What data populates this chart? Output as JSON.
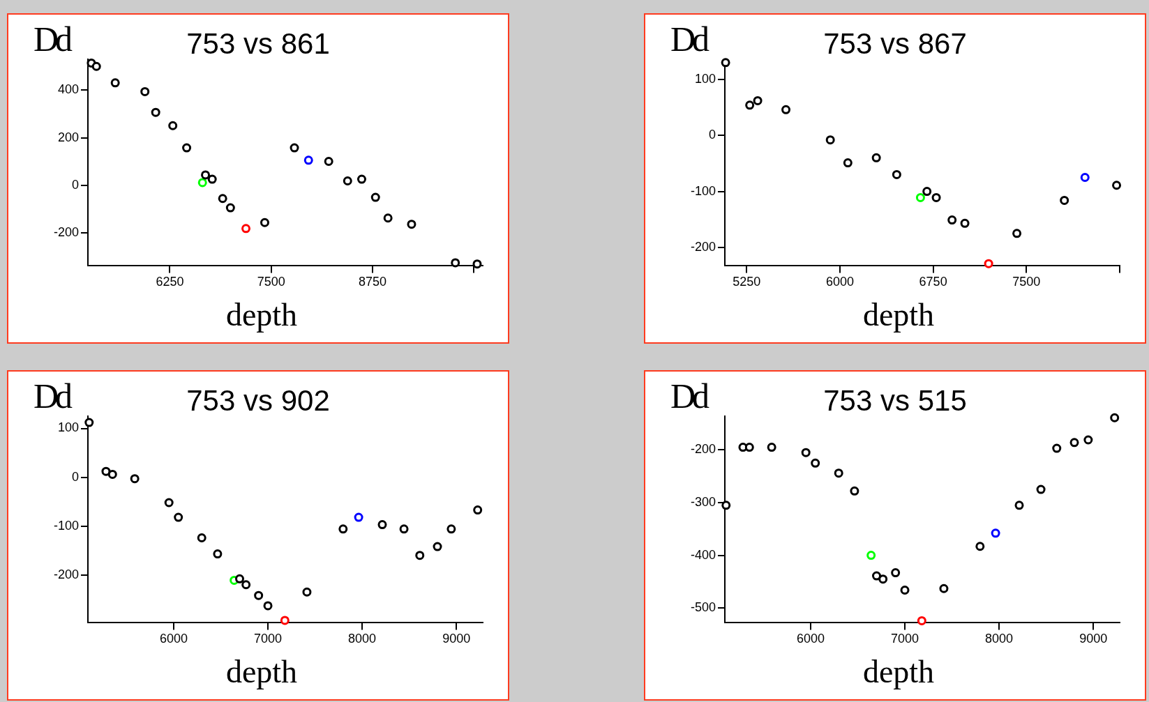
{
  "chart_data": [
    {
      "type": "scatter",
      "title": "753 vs 861",
      "xlabel": "depth",
      "ylabel": "Dd",
      "marker": "circle",
      "x": [
        5282,
        5345,
        5577,
        5943,
        6076,
        6287,
        6458,
        6653,
        6690,
        6773,
        6902,
        6998,
        7189,
        7421,
        7787,
        7961,
        8210,
        8443,
        8617,
        8787,
        8941,
        9232,
        9772,
        10041
      ],
      "values": [
        514,
        500,
        431,
        394,
        307,
        251,
        158,
        12,
        44,
        26,
        -55,
        -94,
        -181,
        -156,
        158,
        106,
        101,
        19,
        26,
        -50,
        -137,
        -163,
        -325,
        -330
      ],
      "colors": [
        "#000000",
        "#000000",
        "#000000",
        "#000000",
        "#000000",
        "#000000",
        "#000000",
        "#00ff00",
        "#000000",
        "#000000",
        "#000000",
        "#000000",
        "#ff0000",
        "#000000",
        "#000000",
        "#0000ff",
        "#000000",
        "#000000",
        "#000000",
        "#000000",
        "#000000",
        "#000000",
        "#000000",
        "#000000"
      ],
      "xlim": [
        5240,
        10110
      ],
      "ylim": [
        -338,
        530
      ],
      "xticks": [
        6250,
        7500,
        8750,
        {
          "value": 10000,
          "label": null
        }
      ],
      "yticks": [
        -200,
        0,
        200,
        400
      ]
    },
    {
      "type": "scatter",
      "title": "753 vs 867",
      "xlabel": "depth",
      "ylabel": "Dd",
      "marker": "circle",
      "x": [
        5081,
        5275,
        5339,
        5566,
        5923,
        6064,
        6293,
        6457,
        6648,
        6700,
        6775,
        6902,
        7005,
        7196,
        7423,
        7805,
        7971,
        8225
      ],
      "values": [
        130,
        54,
        62,
        46,
        -8,
        -49,
        -40,
        -70,
        -111,
        -100,
        -111,
        -151,
        -157,
        -229,
        -175,
        -116,
        -75,
        -89
      ],
      "colors": [
        "#000000",
        "#000000",
        "#000000",
        "#000000",
        "#000000",
        "#000000",
        "#000000",
        "#000000",
        "#00ff00",
        "#000000",
        "#000000",
        "#000000",
        "#000000",
        "#ff0000",
        "#000000",
        "#000000",
        "#0000ff",
        "#000000"
      ],
      "xlim": [
        5075,
        8250
      ],
      "ylim": [
        -233,
        136
      ],
      "xticks": [
        5250,
        6000,
        6750,
        7500,
        {
          "value": 8250,
          "label": null
        }
      ],
      "yticks": [
        -200,
        -100,
        0,
        100
      ]
    },
    {
      "type": "scatter",
      "title": "753 vs 902",
      "xlabel": "depth",
      "ylabel": "Dd",
      "marker": "circle",
      "x": [
        5103,
        5282,
        5351,
        5587,
        5950,
        6050,
        6298,
        6466,
        6642,
        6700,
        6768,
        6901,
        7000,
        7180,
        7414,
        7798,
        7963,
        8214,
        8444,
        8612,
        8799,
        8946,
        9226
      ],
      "values": [
        112,
        12,
        6,
        -3,
        -52,
        -82,
        -124,
        -157,
        -211,
        -208,
        -220,
        -242,
        -263,
        -293,
        -235,
        -106,
        -82,
        -97,
        -106,
        -160,
        -142,
        -106,
        -67
      ],
      "colors": [
        "#000000",
        "#000000",
        "#000000",
        "#000000",
        "#000000",
        "#000000",
        "#000000",
        "#000000",
        "#00ff00",
        "#000000",
        "#000000",
        "#000000",
        "#000000",
        "#ff0000",
        "#000000",
        "#000000",
        "#0000ff",
        "#000000",
        "#000000",
        "#000000",
        "#000000",
        "#000000",
        "#000000"
      ],
      "xlim": [
        5090,
        9280
      ],
      "ylim": [
        -298,
        125
      ],
      "xticks": [
        6000,
        7000,
        8000,
        9000
      ],
      "yticks": [
        -200,
        -100,
        0,
        100
      ]
    },
    {
      "type": "scatter",
      "title": "753 vs 515",
      "xlabel": "depth",
      "ylabel": "Dd",
      "marker": "circle",
      "x": [
        5103,
        5282,
        5351,
        5587,
        5950,
        6050,
        6298,
        6466,
        6642,
        6700,
        6768,
        6901,
        7000,
        7180,
        7414,
        7798,
        7963,
        8214,
        8444,
        8612,
        8799,
        8946,
        9226
      ],
      "values": [
        -305,
        -195,
        -195,
        -195,
        -205,
        -225,
        -244,
        -278,
        -400,
        -439,
        -445,
        -433,
        -466,
        -524,
        -463,
        -383,
        -358,
        -305,
        -275,
        -197,
        -186,
        -181,
        -139
      ],
      "colors": [
        "#000000",
        "#000000",
        "#000000",
        "#000000",
        "#000000",
        "#000000",
        "#000000",
        "#000000",
        "#00ff00",
        "#000000",
        "#000000",
        "#000000",
        "#000000",
        "#ff0000",
        "#000000",
        "#000000",
        "#0000ff",
        "#000000",
        "#000000",
        "#000000",
        "#000000",
        "#000000",
        "#000000"
      ],
      "xlim": [
        5090,
        9280
      ],
      "ylim": [
        -528,
        -136
      ],
      "xticks": [
        6000,
        7000,
        8000,
        9000
      ],
      "yticks": [
        -500,
        -400,
        -300,
        -200
      ]
    }
  ]
}
